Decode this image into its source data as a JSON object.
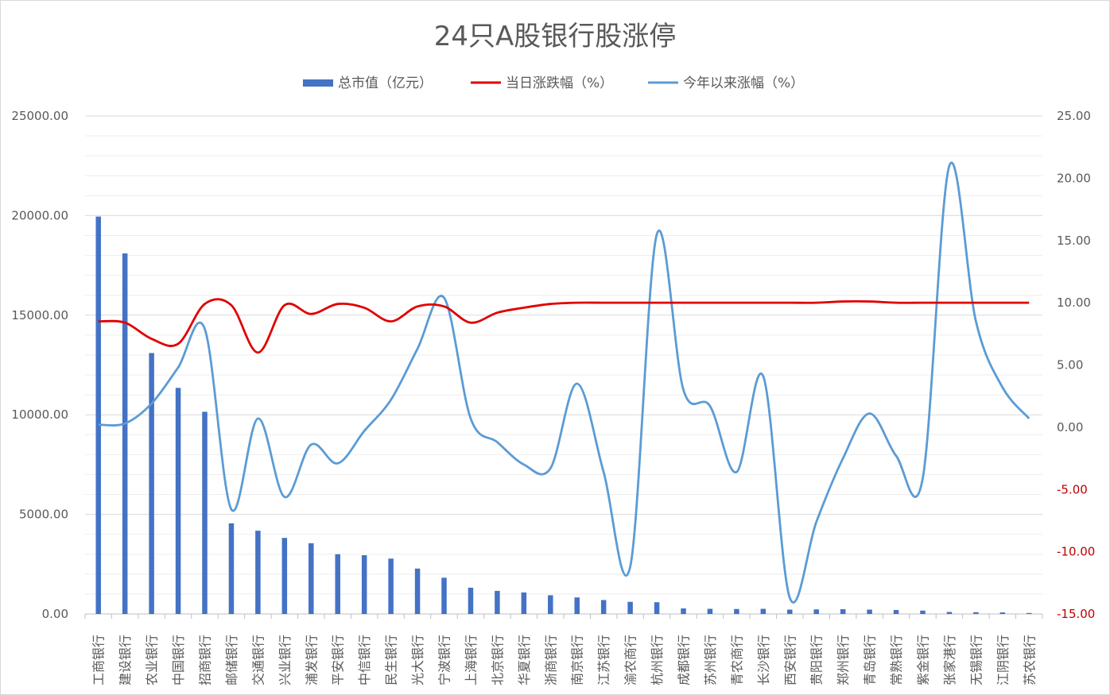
{
  "chart_data": {
    "type": "bar",
    "title": "24只A股银行股涨停",
    "legend_position": "top",
    "grid": true,
    "colors": {
      "bar": "#4472c4",
      "daily_line": "#e00000",
      "ytd_line": "#5b9bd5",
      "grid": "#d9d9d9",
      "text": "#595959",
      "negative_tick": "#c00000"
    },
    "categories": [
      "工商银行",
      "建设银行",
      "农业银行",
      "中国银行",
      "招商银行",
      "邮储银行",
      "交通银行",
      "兴业银行",
      "浦发银行",
      "平安银行",
      "中信银行",
      "民生银行",
      "光大银行",
      "宁波银行",
      "上海银行",
      "北京银行",
      "华夏银行",
      "浙商银行",
      "南京银行",
      "江苏银行",
      "渝农商行",
      "杭州银行",
      "成都银行",
      "苏州银行",
      "青农商行",
      "长沙银行",
      "西安银行",
      "贵阳银行",
      "郑州银行",
      "青岛银行",
      "常熟银行",
      "紫金银行",
      "张家港行",
      "无锡银行",
      "江阴银行",
      "苏农银行"
    ],
    "left_axis": {
      "ylim": [
        0,
        25000
      ],
      "ticks": [
        "0.00",
        "5000.00",
        "10000.00",
        "15000.00",
        "20000.00",
        "25000.00"
      ]
    },
    "right_axis": {
      "ylim": [
        -15,
        25
      ],
      "ticks": [
        "-15.00",
        "-10.00",
        "-5.00",
        "0.00",
        "5.00",
        "10.00",
        "15.00",
        "20.00",
        "25.00"
      ]
    },
    "series": [
      {
        "name": "总市值（亿元）",
        "type": "bar",
        "axis": "left",
        "values": [
          19950,
          18100,
          13100,
          11350,
          10150,
          4550,
          4180,
          3820,
          3550,
          3000,
          2950,
          2780,
          2280,
          1820,
          1320,
          1160,
          1080,
          940,
          830,
          700,
          610,
          590,
          280,
          260,
          250,
          260,
          220,
          230,
          240,
          220,
          200,
          170,
          100,
          90,
          80,
          50
        ]
      },
      {
        "name": "当日涨跌幅（%）",
        "type": "line",
        "axis": "right",
        "values": [
          8.5,
          8.4,
          7.1,
          6.7,
          9.9,
          9.8,
          6.0,
          9.8,
          9.1,
          9.9,
          9.6,
          8.5,
          9.7,
          9.7,
          8.4,
          9.2,
          9.6,
          9.9,
          10.0,
          10.0,
          10.0,
          10.0,
          10.0,
          10.0,
          10.0,
          10.0,
          10.0,
          10.0,
          10.1,
          10.1,
          10.0,
          10.0,
          10.0,
          10.0,
          10.0,
          10.0
        ]
      },
      {
        "name": "今年以来涨幅（%）",
        "type": "line",
        "axis": "right",
        "values": [
          0.2,
          0.3,
          1.9,
          4.8,
          7.9,
          -6.6,
          0.7,
          -5.6,
          -1.4,
          -2.9,
          -0.3,
          2.2,
          6.3,
          10.4,
          0.7,
          -1.2,
          -3.0,
          -3.3,
          3.5,
          -3.6,
          -11.2,
          15.5,
          3.0,
          1.7,
          -3.6,
          4.1,
          -13.7,
          -7.6,
          -2.5,
          1.1,
          -2.3,
          -4.1,
          21.0,
          8.5,
          3.2,
          0.7
        ]
      }
    ]
  }
}
